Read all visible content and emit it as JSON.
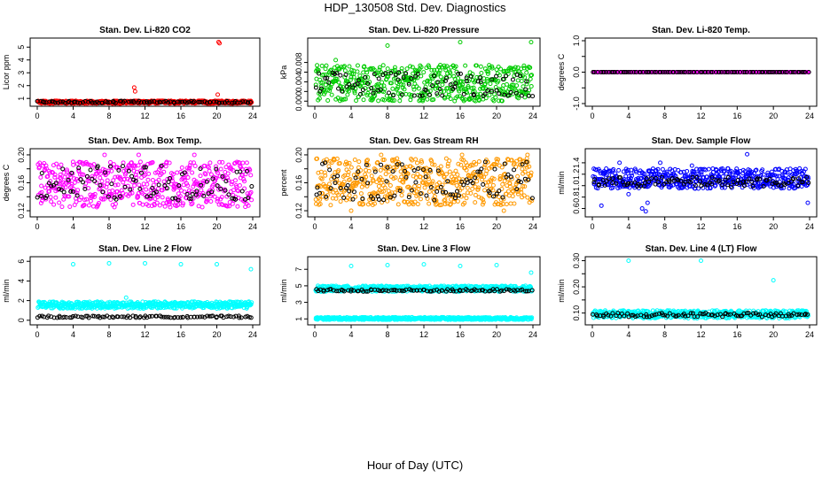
{
  "page": {
    "title": "HDP_130508  Std. Dev. Diagnostics",
    "xlabel": "Hour of Day (UTC)"
  },
  "chart_data": [
    {
      "type": "scatter",
      "title": "Stan. Dev. Li-820 CO2",
      "ylabel": "Licor ppm",
      "xlim": [
        0,
        24
      ],
      "ylim": [
        0.6,
        5.5
      ],
      "xticks": [
        0,
        4,
        8,
        12,
        16,
        20,
        24
      ],
      "xtick_labels": [
        "0",
        "4",
        "8",
        "12",
        "16",
        "20",
        "24"
      ],
      "yticks": [
        1,
        2,
        3,
        4,
        5
      ],
      "ytick_labels": [
        "1",
        "2",
        "3",
        "4",
        "5"
      ],
      "series": [
        {
          "color": "#ff0000",
          "band": [
            0.6,
            0.82
          ],
          "outliers": [
            [
              10.8,
              1.85
            ],
            [
              10.9,
              1.55
            ],
            [
              20.2,
              5.4
            ],
            [
              20.3,
              5.3
            ],
            [
              20.1,
              1.3
            ]
          ]
        },
        {
          "color": "#000000",
          "band": [
            0.64,
            0.8
          ],
          "outliers": []
        }
      ]
    },
    {
      "type": "scatter",
      "title": "Stan. Dev. Li-820 Pressure",
      "ylabel": "kPa",
      "xlim": [
        0,
        24
      ],
      "ylim": [
        -0.0005,
        0.0125
      ],
      "xticks": [
        0,
        4,
        8,
        12,
        16,
        20,
        24
      ],
      "xtick_labels": [
        "0",
        "4",
        "8",
        "12",
        "16",
        "20",
        "24"
      ],
      "yticks": [
        0.0,
        0.002,
        0.004,
        0.006,
        0.008
      ],
      "ytick_labels": [
        "0.000",
        "",
        "0.004",
        "",
        "0.008"
      ],
      "series": [
        {
          "color": "#00cc00",
          "band": [
            0.0,
            0.0075
          ],
          "outliers": [
            [
              8.0,
              0.0115
            ],
            [
              16.0,
              0.0122
            ],
            [
              23.8,
              0.0122
            ],
            [
              2.3,
              0.0085
            ]
          ]
        },
        {
          "color": "#000000",
          "band": [
            0.001,
            0.006
          ],
          "outliers": []
        }
      ]
    },
    {
      "type": "scatter",
      "title": "Stan. Dev. Li-820 Temp.",
      "ylabel": "degrees C",
      "xlim": [
        0,
        24
      ],
      "ylim": [
        -1,
        1
      ],
      "xticks": [
        0,
        4,
        8,
        12,
        16,
        20,
        24
      ],
      "xtick_labels": [
        "0",
        "4",
        "8",
        "12",
        "16",
        "20",
        "24"
      ],
      "yticks": [
        -1,
        -0.5,
        0,
        0.5,
        1
      ],
      "ytick_labels": [
        "-1.0",
        "",
        "0.0",
        "",
        "1.0"
      ],
      "series": [
        {
          "color": "#ff00ff",
          "band": [
            0.0,
            0.0
          ],
          "outliers": []
        },
        {
          "color": "#000000",
          "band": [
            0.0,
            0.0
          ],
          "outliers": []
        }
      ]
    },
    {
      "type": "scatter",
      "title": "Stan. Dev. Amb. Box Temp.",
      "ylabel": "degrees C",
      "xlim": [
        0,
        24
      ],
      "ylim": [
        0.115,
        0.205
      ],
      "xticks": [
        0,
        4,
        8,
        12,
        16,
        20,
        24
      ],
      "xtick_labels": [
        "0",
        "4",
        "8",
        "12",
        "16",
        "20",
        "24"
      ],
      "yticks": [
        0.12,
        0.14,
        0.16,
        0.18,
        0.2
      ],
      "ytick_labels": [
        "0.12",
        "",
        "0.16",
        "",
        "0.20"
      ],
      "series": [
        {
          "color": "#ff00ff",
          "band": [
            0.125,
            0.19
          ],
          "outliers": [
            [
              7.5,
              0.2
            ],
            [
              11.3,
              0.2
            ],
            [
              17.5,
              0.2
            ]
          ]
        },
        {
          "color": "#000000",
          "band": [
            0.135,
            0.185
          ],
          "outliers": []
        }
      ]
    },
    {
      "type": "scatter",
      "title": "Stan. Dev. Gas Stream RH",
      "ylabel": "percent",
      "xlim": [
        0,
        24
      ],
      "ylim": [
        0.115,
        0.205
      ],
      "xticks": [
        0,
        4,
        8,
        12,
        16,
        20,
        24
      ],
      "xtick_labels": [
        "0",
        "4",
        "8",
        "12",
        "16",
        "20",
        "24"
      ],
      "yticks": [
        0.12,
        0.14,
        0.16,
        0.18,
        0.2
      ],
      "ytick_labels": [
        "0.12",
        "",
        "0.16",
        "",
        "0.20"
      ],
      "series": [
        {
          "color": "#ff9900",
          "band": [
            0.128,
            0.195
          ],
          "outliers": [
            [
              7.3,
              0.2
            ],
            [
              16.2,
              0.2
            ],
            [
              23.4,
              0.2
            ],
            [
              4.0,
              0.12
            ],
            [
              20.8,
              0.12
            ]
          ]
        },
        {
          "color": "#000000",
          "band": [
            0.135,
            0.19
          ],
          "outliers": []
        }
      ]
    },
    {
      "type": "scatter",
      "title": "Stan. Dev. Sample Flow",
      "ylabel": "ml/min",
      "xlim": [
        0,
        24
      ],
      "ylim": [
        0.5,
        1.6
      ],
      "xticks": [
        0,
        4,
        8,
        12,
        16,
        20,
        24
      ],
      "xtick_labels": [
        "0",
        "4",
        "8",
        "12",
        "16",
        "20",
        "24"
      ],
      "yticks": [
        0.6,
        0.8,
        1.0,
        1.2,
        1.4
      ],
      "ytick_labels": [
        "0.6",
        "0.8",
        "1.0",
        "1.2",
        "1.4"
      ],
      "series": [
        {
          "color": "#0000ff",
          "band": [
            0.95,
            1.3
          ],
          "outliers": [
            [
              1.0,
              0.65
            ],
            [
              5.5,
              0.6
            ],
            [
              5.9,
              0.55
            ],
            [
              6.1,
              0.7
            ],
            [
              4.0,
              0.85
            ],
            [
              7.5,
              1.4
            ],
            [
              17.1,
              1.55
            ],
            [
              11.0,
              1.35
            ],
            [
              23.8,
              0.7
            ],
            [
              3.0,
              1.4
            ]
          ]
        },
        {
          "color": "#000000",
          "band": [
            0.98,
            1.15
          ],
          "outliers": []
        }
      ]
    },
    {
      "type": "scatter",
      "title": "Stan. Dev. Line 2 Flow",
      "ylabel": "ml/min",
      "xlim": [
        0,
        24
      ],
      "ylim": [
        -0.2,
        6.2
      ],
      "xticks": [
        0,
        4,
        8,
        12,
        16,
        20,
        24
      ],
      "xtick_labels": [
        "0",
        "4",
        "8",
        "12",
        "16",
        "20",
        "24"
      ],
      "yticks": [
        0,
        2,
        4,
        6
      ],
      "ytick_labels": [
        "0",
        "2",
        "4",
        "6"
      ],
      "series": [
        {
          "color": "#00ffff",
          "band": [
            1.2,
            1.9
          ],
          "outliers": [
            [
              4.0,
              5.7
            ],
            [
              8.0,
              5.8
            ],
            [
              12.0,
              5.8
            ],
            [
              16.0,
              5.7
            ],
            [
              20.0,
              5.7
            ],
            [
              23.8,
              5.2
            ],
            [
              9.9,
              2.3
            ]
          ]
        },
        {
          "color": "#000000",
          "band": [
            0.25,
            0.45
          ],
          "outliers": []
        }
      ]
    },
    {
      "type": "scatter",
      "title": "Stan. Dev. Line 3 Flow",
      "ylabel": "ml/min",
      "xlim": [
        0,
        24
      ],
      "ylim": [
        0.6,
        8.2
      ],
      "xticks": [
        0,
        4,
        8,
        12,
        16,
        20,
        24
      ],
      "xtick_labels": [
        "0",
        "4",
        "8",
        "12",
        "16",
        "20",
        "24"
      ],
      "yticks": [
        1,
        3,
        5,
        7
      ],
      "ytick_labels": [
        "1",
        "3",
        "5",
        "7"
      ],
      "series": [
        {
          "color": "#00ffff",
          "band": [
            4.3,
            5.0
          ],
          "outliers": [
            [
              4.0,
              7.4
            ],
            [
              8.0,
              7.5
            ],
            [
              12.0,
              7.6
            ],
            [
              16.0,
              7.4
            ],
            [
              20.0,
              7.5
            ],
            [
              23.8,
              6.6
            ]
          ]
        },
        {
          "color": "#00ffff",
          "band": [
            0.9,
            1.2
          ],
          "outliers": []
        },
        {
          "color": "#000000",
          "band": [
            4.3,
            4.6
          ],
          "outliers": []
        }
      ]
    },
    {
      "type": "scatter",
      "title": "Stan. Dev. Line 4 (LT) Flow",
      "ylabel": "ml/min",
      "xlim": [
        0,
        24
      ],
      "ylim": [
        0.065,
        0.305
      ],
      "xticks": [
        0,
        4,
        8,
        12,
        16,
        20,
        24
      ],
      "xtick_labels": [
        "0",
        "4",
        "8",
        "12",
        "16",
        "20",
        "24"
      ],
      "yticks": [
        0.1,
        0.15,
        0.2,
        0.25,
        0.3
      ],
      "ytick_labels": [
        "0.10",
        "",
        "0.20",
        "",
        "0.30"
      ],
      "series": [
        {
          "color": "#00ffff",
          "band": [
            0.08,
            0.11
          ],
          "outliers": [
            [
              4.0,
              0.3
            ],
            [
              12.0,
              0.3
            ],
            [
              20.0,
              0.225
            ]
          ]
        },
        {
          "color": "#000000",
          "band": [
            0.085,
            0.1
          ],
          "outliers": []
        }
      ]
    }
  ]
}
